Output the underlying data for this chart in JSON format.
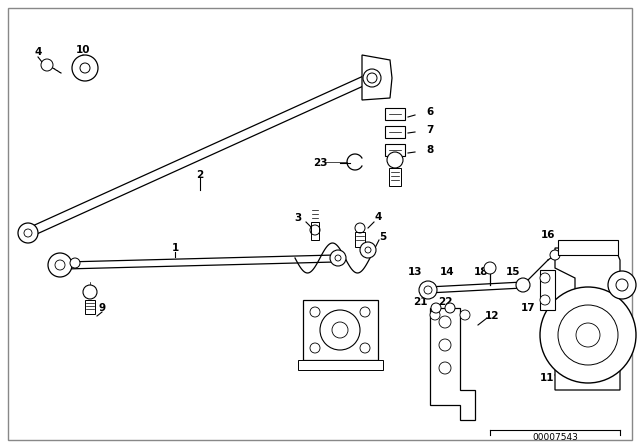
{
  "bg_color": "#ffffff",
  "border_color": "#aaaaaa",
  "line_color": "#000000",
  "part_number": "00007543",
  "figsize": [
    6.4,
    4.48
  ],
  "dpi": 100,
  "xlim": [
    0,
    640
  ],
  "ylim": [
    0,
    448
  ]
}
